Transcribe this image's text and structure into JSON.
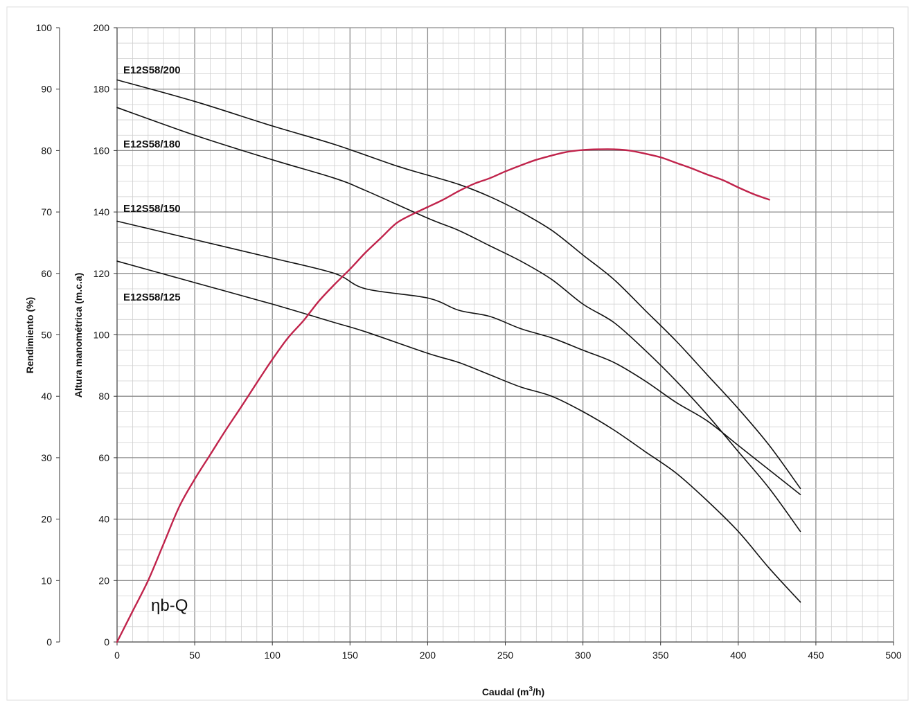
{
  "chart_data": {
    "type": "line",
    "title": "",
    "xlabel": "Caudal (m³/h)",
    "xlabel_main": "Caudal (m",
    "xlabel_sup": "3",
    "xlabel_tail": "/h)",
    "ylabel": "Altura manométrica (m.c.a)",
    "y2label": "Rendimiento (%)",
    "xlim": [
      0,
      500
    ],
    "ylim": [
      0,
      200
    ],
    "y2lim": [
      0,
      100
    ],
    "xticks": [
      "0",
      "50",
      "100",
      "150",
      "200",
      "250",
      "300",
      "350",
      "400",
      "450",
      "500"
    ],
    "yticks": [
      "0",
      "20",
      "40",
      "60",
      "80",
      "100",
      "120",
      "140",
      "160",
      "180",
      "200"
    ],
    "y2ticks": [
      "0",
      "10",
      "20",
      "30",
      "40",
      "50",
      "60",
      "70",
      "80",
      "90",
      "100"
    ],
    "grid": true,
    "series": [
      {
        "name": "E12S58/200",
        "axis": "left",
        "color": "#111111",
        "x": [
          0,
          50,
          100,
          140,
          180,
          200,
          220,
          240,
          260,
          280,
          300,
          320,
          340,
          360,
          380,
          400,
          420,
          440
        ],
        "y": [
          183,
          176,
          168,
          162,
          155,
          152,
          149,
          145,
          140,
          134,
          126,
          118,
          108,
          98,
          87,
          76,
          64,
          50
        ]
      },
      {
        "name": "E12S58/180",
        "axis": "left",
        "color": "#111111",
        "x": [
          0,
          50,
          100,
          140,
          160,
          200,
          220,
          240,
          260,
          280,
          300,
          320,
          340,
          360,
          380,
          400,
          420,
          440
        ],
        "y": [
          174,
          165,
          157,
          151,
          147,
          138,
          134,
          129,
          124,
          118,
          110,
          104,
          95,
          85,
          74,
          62,
          50,
          36
        ]
      },
      {
        "name": "E12S58/150",
        "axis": "left",
        "color": "#111111",
        "x": [
          0,
          50,
          100,
          140,
          160,
          200,
          220,
          240,
          260,
          280,
          300,
          320,
          340,
          360,
          380,
          400,
          420,
          440
        ],
        "y": [
          137,
          131,
          125,
          120,
          115,
          112,
          108,
          106,
          102,
          99,
          95,
          91,
          85,
          78,
          72,
          64,
          56,
          48
        ]
      },
      {
        "name": "E12S58/125",
        "axis": "left",
        "color": "#111111",
        "x": [
          0,
          50,
          100,
          140,
          160,
          200,
          220,
          240,
          260,
          280,
          300,
          320,
          340,
          360,
          380,
          400,
          420,
          440
        ],
        "y": [
          124,
          117,
          110,
          104,
          101,
          94,
          91,
          87,
          83,
          80,
          75,
          69,
          62,
          55,
          46,
          36,
          24,
          13
        ]
      },
      {
        "name": "ηb-Q",
        "axis": "right",
        "color": "#c0234b",
        "x": [
          0,
          10,
          20,
          30,
          40,
          50,
          60,
          70,
          80,
          90,
          100,
          110,
          120,
          130,
          140,
          150,
          160,
          170,
          180,
          190,
          200,
          210,
          220,
          230,
          240,
          250,
          260,
          270,
          280,
          290,
          300,
          310,
          320,
          330,
          340,
          350,
          360,
          370,
          380,
          390,
          400,
          410,
          420
        ],
        "y": [
          0,
          5,
          10,
          16,
          22,
          26.5,
          30.5,
          34.5,
          38.3,
          42.2,
          46,
          49.5,
          52.3,
          55.5,
          58.2,
          60.7,
          63.4,
          65.8,
          68.2,
          69.6,
          70.8,
          72,
          73.4,
          74.6,
          75.5,
          76.6,
          77.6,
          78.5,
          79.2,
          79.8,
          80.1,
          80.2,
          80.2,
          80,
          79.5,
          78.9,
          78,
          77.1,
          76.1,
          75.2,
          74,
          72.9,
          72
        ]
      }
    ],
    "annotations": [
      {
        "text": "E12S58/200"
      },
      {
        "text": "E12S58/180"
      },
      {
        "text": "E12S58/150"
      },
      {
        "text": "E12S58/125"
      },
      {
        "text": "ηb-Q"
      }
    ]
  }
}
